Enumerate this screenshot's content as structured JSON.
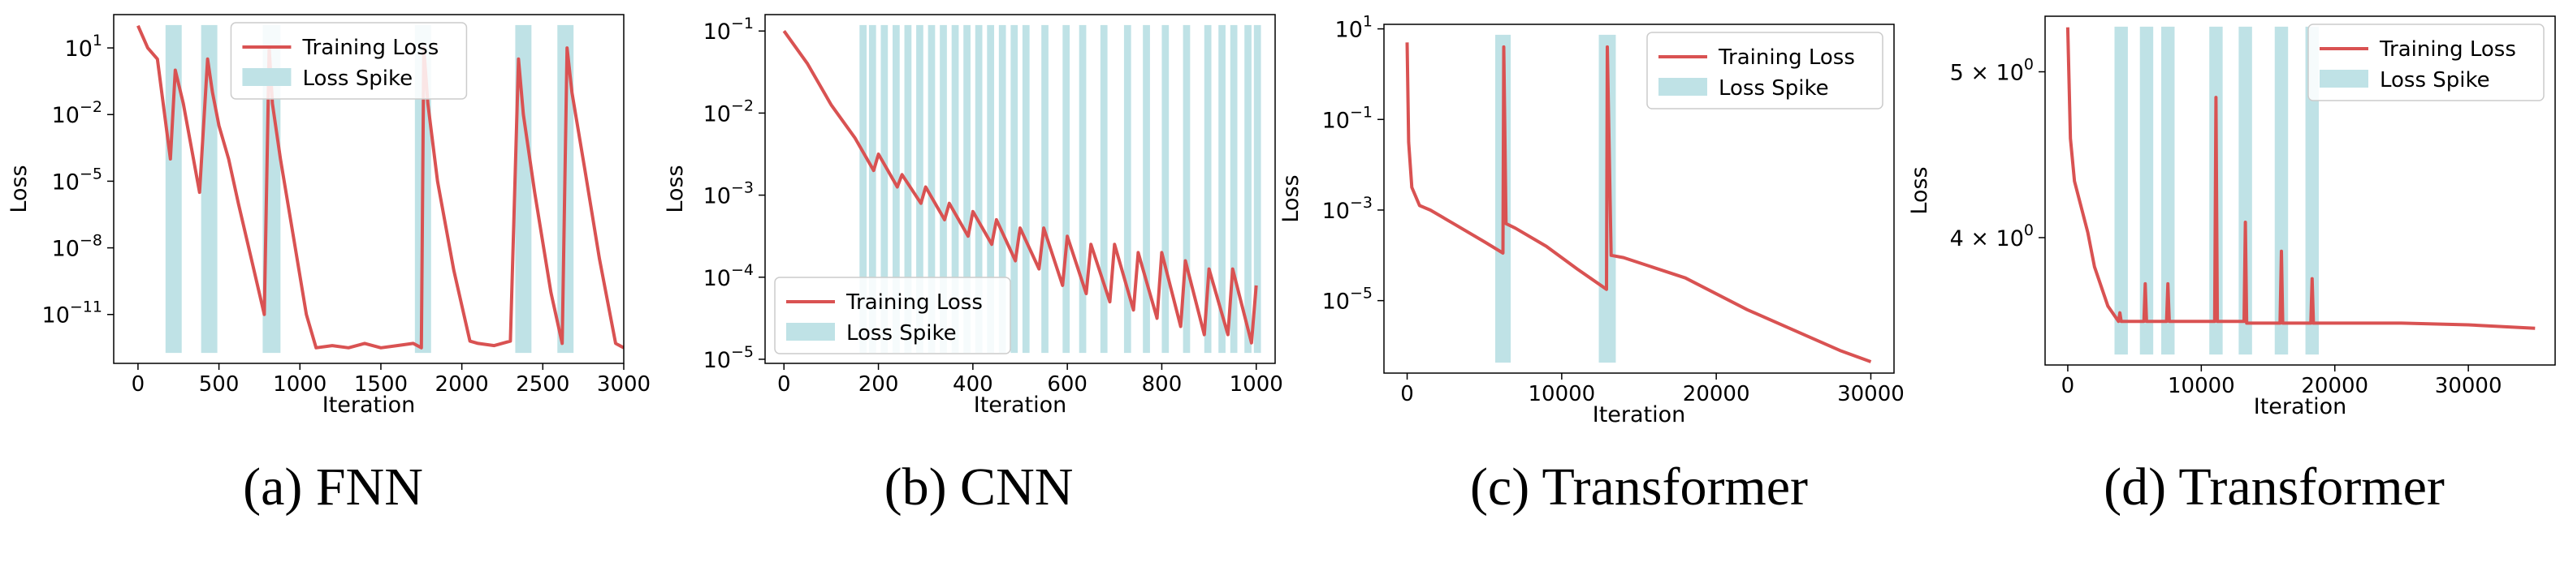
{
  "chart_data": [
    {
      "type": "line",
      "caption": "(a) FNN",
      "xlabel": "Iteration",
      "ylabel": "Loss",
      "yscale": "log",
      "xlim": [
        -150,
        3000
      ],
      "ylim_log10": [
        -13.2,
        2.5
      ],
      "xticks": [
        0,
        500,
        1000,
        1500,
        2000,
        2500,
        3000
      ],
      "xtick_labels": [
        "0",
        "500",
        "1000",
        "1500",
        "2000",
        "2500",
        "3000"
      ],
      "yticks_log10": [
        1,
        -2,
        -5,
        -8,
        -11
      ],
      "ytick_labels": [
        [
          "10",
          "1"
        ],
        [
          "10",
          "−2"
        ],
        [
          "10",
          "−5"
        ],
        [
          "10",
          "−8"
        ],
        [
          "10",
          "−11"
        ]
      ],
      "legend": {
        "position": "top-center",
        "line_label": "Training Loss",
        "patch_label": "Loss Spike"
      },
      "series": [
        {
          "name": "Training Loss",
          "color": "#d95252",
          "x": [
            0,
            60,
            120,
            200,
            230,
            280,
            330,
            380,
            430,
            460,
            500,
            560,
            620,
            700,
            780,
            810,
            830,
            880,
            960,
            1040,
            1100,
            1200,
            1300,
            1400,
            1500,
            1600,
            1700,
            1750,
            1765,
            1790,
            1850,
            1950,
            2050,
            2100,
            2200,
            2300,
            2350,
            2380,
            2450,
            2550,
            2620,
            2650,
            2680,
            2760,
            2850,
            2950,
            3000
          ],
          "y_log10": [
            2,
            1,
            0.5,
            -4,
            0,
            -1.5,
            -3.5,
            -5.5,
            0.5,
            -1,
            -2.5,
            -4,
            -6,
            -8.5,
            -11,
            1,
            -1.5,
            -4,
            -7.5,
            -11,
            -12.5,
            -12.4,
            -12.5,
            -12.3,
            -12.5,
            -12.4,
            -12.3,
            -12.5,
            1,
            -1.5,
            -5,
            -9,
            -12.2,
            -12.3,
            -12.4,
            -12.2,
            0.5,
            -2,
            -5.5,
            -10,
            -12.3,
            1,
            -1,
            -4.5,
            -8.5,
            -12.3,
            -12.5
          ]
        }
      ],
      "spike_bands": [
        [
          170,
          270
        ],
        [
          390,
          490
        ],
        [
          770,
          880
        ],
        [
          1710,
          1810
        ],
        [
          2330,
          2430
        ],
        [
          2590,
          2690
        ]
      ]
    },
    {
      "type": "line",
      "caption": "(b) CNN",
      "xlabel": "Iteration",
      "ylabel": "Loss",
      "yscale": "log",
      "xlim": [
        -40,
        1040
      ],
      "ylim_log10": [
        -5.05,
        -0.8
      ],
      "xticks": [
        0,
        200,
        400,
        600,
        800,
        1000
      ],
      "xtick_labels": [
        "0",
        "200",
        "400",
        "600",
        "800",
        "1000"
      ],
      "yticks_log10": [
        -1,
        -2,
        -3,
        -4,
        -5
      ],
      "ytick_labels": [
        [
          "10",
          "−1"
        ],
        [
          "10",
          "−2"
        ],
        [
          "10",
          "−3"
        ],
        [
          "10",
          "−4"
        ],
        [
          "10",
          "−5"
        ]
      ],
      "legend": {
        "position": "lower-left",
        "line_label": "Training Loss",
        "patch_label": "Loss Spike"
      },
      "series": [
        {
          "name": "Training Loss",
          "color": "#d95252",
          "x": [
            0,
            50,
            100,
            150,
            190,
            200,
            240,
            250,
            290,
            300,
            340,
            350,
            390,
            400,
            440,
            450,
            490,
            500,
            540,
            550,
            590,
            600,
            640,
            650,
            690,
            700,
            740,
            750,
            790,
            800,
            840,
            850,
            890,
            900,
            940,
            950,
            990,
            1000
          ],
          "y_log10": [
            -1,
            -1.4,
            -1.9,
            -2.3,
            -2.7,
            -2.5,
            -2.9,
            -2.75,
            -3.1,
            -2.9,
            -3.3,
            -3.1,
            -3.5,
            -3.2,
            -3.6,
            -3.3,
            -3.8,
            -3.4,
            -3.9,
            -3.4,
            -4.1,
            -3.5,
            -4.2,
            -3.6,
            -4.3,
            -3.6,
            -4.4,
            -3.7,
            -4.5,
            -3.7,
            -4.6,
            -3.8,
            -4.7,
            -3.9,
            -4.7,
            -3.9,
            -4.8,
            -4.1
          ]
        }
      ],
      "spike_bands": [
        [
          160,
          175
        ],
        [
          180,
          195
        ],
        [
          205,
          220
        ],
        [
          230,
          245
        ],
        [
          255,
          270
        ],
        [
          280,
          295
        ],
        [
          305,
          320
        ],
        [
          330,
          345
        ],
        [
          355,
          370
        ],
        [
          380,
          395
        ],
        [
          405,
          420
        ],
        [
          430,
          445
        ],
        [
          455,
          470
        ],
        [
          480,
          495
        ],
        [
          505,
          520
        ],
        [
          545,
          560
        ],
        [
          590,
          605
        ],
        [
          625,
          640
        ],
        [
          670,
          685
        ],
        [
          720,
          735
        ],
        [
          760,
          775
        ],
        [
          800,
          815
        ],
        [
          845,
          860
        ],
        [
          890,
          905
        ],
        [
          920,
          935
        ],
        [
          945,
          960
        ],
        [
          975,
          990
        ],
        [
          995,
          1010
        ]
      ]
    },
    {
      "type": "line",
      "caption": "(c) Transformer",
      "xlabel": "Iteration",
      "ylabel": "Loss",
      "yscale": "log",
      "xlim": [
        -1500,
        31500
      ],
      "ylim_log10": [
        -6.6,
        1.1
      ],
      "xticks": [
        0,
        10000,
        20000,
        30000
      ],
      "xtick_labels": [
        "0",
        "10000",
        "20000",
        "30000"
      ],
      "yticks_log10": [
        1,
        -1,
        -3,
        -5
      ],
      "ytick_labels": [
        [
          "10",
          "1"
        ],
        [
          "10",
          "−1"
        ],
        [
          "10",
          "−3"
        ],
        [
          "10",
          "−5"
        ]
      ],
      "legend": {
        "position": "top-right",
        "line_label": "Training Loss",
        "patch_label": "Loss Spike"
      },
      "series": [
        {
          "name": "Training Loss",
          "color": "#d95252",
          "x": [
            0,
            100,
            300,
            800,
            1500,
            3000,
            5000,
            6200,
            6250,
            6400,
            7000,
            9000,
            11000,
            12900,
            12950,
            13200,
            14000,
            18000,
            22000,
            26000,
            28000,
            30000
          ],
          "y_log10": [
            0.7,
            -1.5,
            -2.5,
            -2.9,
            -3.0,
            -3.3,
            -3.7,
            -3.95,
            0.6,
            -3.3,
            -3.4,
            -3.8,
            -4.3,
            -4.75,
            0.6,
            -4.0,
            -4.05,
            -4.5,
            -5.2,
            -5.8,
            -6.1,
            -6.35
          ]
        }
      ],
      "spike_bands": [
        [
          5700,
          6700
        ],
        [
          12400,
          13500
        ]
      ]
    },
    {
      "type": "line",
      "caption": "(d) Transformer",
      "xlabel": "Iteration",
      "ylabel": "Loss",
      "yscale": "log",
      "xlim": [
        -1700,
        36500
      ],
      "ylim_log10": [
        0.5275,
        0.7315
      ],
      "xticks": [
        0,
        10000,
        20000,
        30000
      ],
      "xtick_labels": [
        "0",
        "10000",
        "20000",
        "30000"
      ],
      "yticks_log10": [
        0.699,
        0.602
      ],
      "ytick_labels": [
        [
          "5 × 10",
          "0"
        ],
        [
          "4 × 10",
          "0"
        ]
      ],
      "legend": {
        "position": "top-right",
        "line_label": "Training Loss",
        "patch_label": "Loss Spike"
      },
      "series": [
        {
          "name": "Training Loss",
          "color": "#d95252",
          "x": [
            0,
            200,
            500,
            1000,
            1500,
            2000,
            3000,
            3800,
            3900,
            4000,
            5700,
            5800,
            5900,
            7400,
            7500,
            7600,
            11000,
            11100,
            11200,
            13200,
            13300,
            13400,
            15900,
            16000,
            16100,
            18200,
            18300,
            18400,
            25000,
            30000,
            35000
          ],
          "y_log10": [
            0.725,
            0.66,
            0.635,
            0.62,
            0.605,
            0.585,
            0.562,
            0.553,
            0.558,
            0.553,
            0.553,
            0.575,
            0.553,
            0.553,
            0.575,
            0.553,
            0.553,
            0.684,
            0.553,
            0.553,
            0.611,
            0.552,
            0.552,
            0.594,
            0.552,
            0.552,
            0.578,
            0.552,
            0.552,
            0.551,
            0.549
          ]
        }
      ],
      "spike_bands": [
        [
          3500,
          4500
        ],
        [
          5400,
          6400
        ],
        [
          7000,
          8000
        ],
        [
          10600,
          11600
        ],
        [
          12800,
          13800
        ],
        [
          15500,
          16500
        ],
        [
          17800,
          18800
        ]
      ]
    }
  ]
}
